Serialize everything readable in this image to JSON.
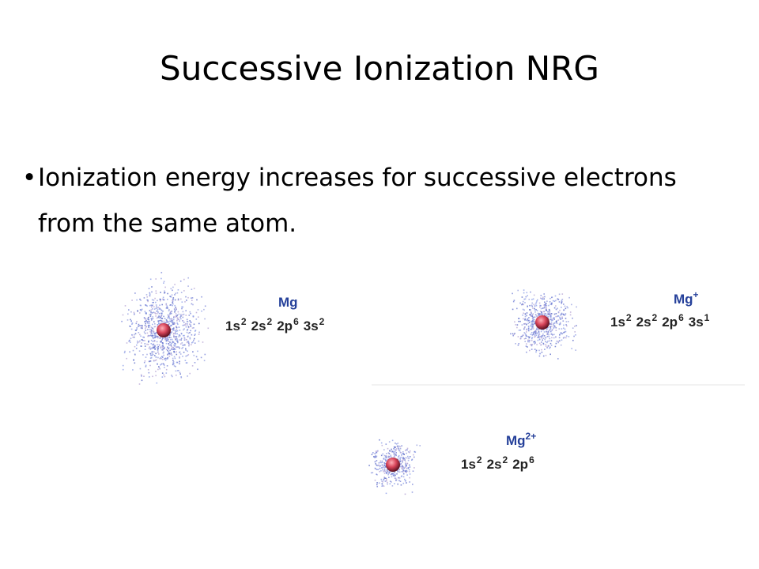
{
  "title": "Successive Ionization NRG",
  "bullet": "Ionization energy increases for successive electrons from the same atom.",
  "atoms": [
    {
      "symbol": "Mg",
      "config": [
        {
          "orbital": "1s",
          "electrons": 2
        },
        {
          "orbital": "2s",
          "electrons": 2
        },
        {
          "orbital": "2p",
          "electrons": 6
        },
        {
          "orbital": "3s",
          "electrons": 2
        }
      ]
    },
    {
      "symbol": "Mg",
      "charge": "+",
      "config": [
        {
          "orbital": "1s",
          "electrons": 2
        },
        {
          "orbital": "2s",
          "electrons": 2
        },
        {
          "orbital": "2p",
          "electrons": 6
        },
        {
          "orbital": "3s",
          "electrons": 1
        }
      ]
    },
    {
      "symbol": "Mg",
      "charge": "2+",
      "config": [
        {
          "orbital": "1s",
          "electrons": 2
        },
        {
          "orbital": "2s",
          "electrons": 2
        },
        {
          "orbital": "2p",
          "electrons": 6
        }
      ]
    }
  ]
}
